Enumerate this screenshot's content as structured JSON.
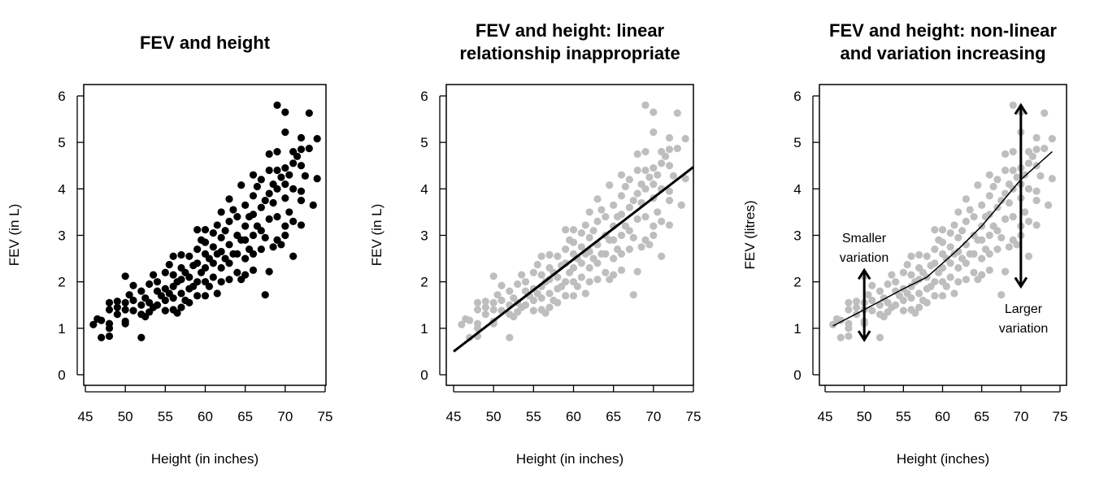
{
  "chart_data": [
    {
      "type": "scatter",
      "title": [
        "FEV and height"
      ],
      "xlabel": "Height (in inches)",
      "ylabel": "FEV (in L)",
      "xlim": [
        45,
        75
      ],
      "ylim": [
        0,
        6
      ],
      "xticks": [
        45,
        50,
        55,
        60,
        65,
        70,
        75
      ],
      "yticks": [
        0,
        1,
        2,
        3,
        4,
        5,
        6
      ],
      "point_color": "#000000",
      "grid": false
    },
    {
      "type": "scatter",
      "title": [
        "FEV and height: linear",
        "relationship inappropriate"
      ],
      "xlabel": "Height (in inches)",
      "ylabel": "FEV (in L)",
      "xlim": [
        45,
        75
      ],
      "ylim": [
        0,
        6
      ],
      "xticks": [
        45,
        50,
        55,
        60,
        65,
        70,
        75
      ],
      "yticks": [
        0,
        1,
        2,
        3,
        4,
        5,
        6
      ],
      "point_color": "#bebebe",
      "grid": false,
      "line": {
        "x": [
          45,
          75
        ],
        "y": [
          0.5,
          4.47
        ]
      }
    },
    {
      "type": "scatter",
      "title": [
        "FEV and height: non-linear",
        "and variation increasing"
      ],
      "xlabel": "Height (inches)",
      "ylabel": "FEV (litres)",
      "xlim": [
        45,
        75
      ],
      "ylim": [
        0,
        6
      ],
      "xticks": [
        45,
        50,
        55,
        60,
        65,
        70,
        75
      ],
      "yticks": [
        0,
        1,
        2,
        3,
        4,
        5,
        6
      ],
      "point_color": "#bebebe",
      "grid": false,
      "curve": {
        "x": [
          46,
          50,
          55,
          58,
          60,
          62,
          65,
          68,
          70,
          72,
          74
        ],
        "y": [
          1.05,
          1.4,
          1.85,
          2.1,
          2.4,
          2.7,
          3.2,
          3.8,
          4.2,
          4.5,
          4.8
        ]
      },
      "annotations": [
        {
          "text": [
            "Smaller",
            "variation"
          ],
          "arrow_x": 50,
          "arrow_y": [
            0.75,
            2.25
          ]
        },
        {
          "text": [
            "Larger",
            "variation"
          ],
          "arrow_x": 70,
          "arrow_y": [
            1.9,
            5.8
          ]
        }
      ]
    }
  ],
  "points": [
    [
      46,
      1.08
    ],
    [
      46.5,
      1.2
    ],
    [
      47,
      0.8
    ],
    [
      47,
      1.17
    ],
    [
      48,
      0.83
    ],
    [
      48,
      1.0
    ],
    [
      48,
      1.1
    ],
    [
      48,
      1.4
    ],
    [
      48,
      1.55
    ],
    [
      49,
      1.3
    ],
    [
      49,
      1.45
    ],
    [
      49,
      1.58
    ],
    [
      50,
      1.1
    ],
    [
      50,
      1.15
    ],
    [
      50,
      1.4
    ],
    [
      50,
      1.55
    ],
    [
      50,
      2.12
    ],
    [
      50.5,
      1.72
    ],
    [
      51,
      1.38
    ],
    [
      51,
      1.6
    ],
    [
      51,
      1.92
    ],
    [
      52,
      0.8
    ],
    [
      52,
      1.3
    ],
    [
      52,
      1.5
    ],
    [
      52,
      1.8
    ],
    [
      52.5,
      1.25
    ],
    [
      52.5,
      1.65
    ],
    [
      53,
      1.35
    ],
    [
      53,
      1.55
    ],
    [
      53,
      1.95
    ],
    [
      53.5,
      1.45
    ],
    [
      53.5,
      2.15
    ],
    [
      54,
      1.5
    ],
    [
      54,
      1.8
    ],
    [
      54,
      2.0
    ],
    [
      54.5,
      1.7
    ],
    [
      55,
      1.38
    ],
    [
      55,
      1.6
    ],
    [
      55,
      1.85
    ],
    [
      55,
      2.2
    ],
    [
      55.5,
      1.75
    ],
    [
      55.5,
      2.37
    ],
    [
      56,
      1.4
    ],
    [
      56,
      1.65
    ],
    [
      56,
      1.9
    ],
    [
      56,
      2.15
    ],
    [
      56,
      2.55
    ],
    [
      56.5,
      1.33
    ],
    [
      56.5,
      2.0
    ],
    [
      57,
      1.45
    ],
    [
      57,
      1.75
    ],
    [
      57,
      2.05
    ],
    [
      57,
      2.3
    ],
    [
      57,
      2.58
    ],
    [
      57.5,
      1.6
    ],
    [
      57.5,
      2.2
    ],
    [
      58,
      1.55
    ],
    [
      58,
      1.85
    ],
    [
      58,
      2.1
    ],
    [
      58,
      2.55
    ],
    [
      58.5,
      1.9
    ],
    [
      58.5,
      2.35
    ],
    [
      59,
      1.7
    ],
    [
      59,
      2.0
    ],
    [
      59,
      2.4
    ],
    [
      59,
      2.7
    ],
    [
      59,
      3.12
    ],
    [
      59.5,
      2.2
    ],
    [
      59.5,
      2.9
    ],
    [
      60,
      1.7
    ],
    [
      60,
      2.0
    ],
    [
      60,
      2.3
    ],
    [
      60,
      2.6
    ],
    [
      60,
      2.85
    ],
    [
      60,
      3.12
    ],
    [
      60.5,
      1.9
    ],
    [
      60.5,
      2.5
    ],
    [
      61,
      2.1
    ],
    [
      61,
      2.4
    ],
    [
      61,
      2.75
    ],
    [
      61,
      3.05
    ],
    [
      61.5,
      1.75
    ],
    [
      61.5,
      2.6
    ],
    [
      61.5,
      3.22
    ],
    [
      62,
      2.0
    ],
    [
      62,
      2.3
    ],
    [
      62,
      2.65
    ],
    [
      62,
      2.95
    ],
    [
      62,
      3.5
    ],
    [
      62.5,
      2.5
    ],
    [
      62.5,
      3.1
    ],
    [
      63,
      2.05
    ],
    [
      63,
      2.4
    ],
    [
      63,
      2.8
    ],
    [
      63,
      3.3
    ],
    [
      63,
      3.78
    ],
    [
      63.5,
      2.6
    ],
    [
      63.5,
      3.55
    ],
    [
      64,
      2.2
    ],
    [
      64,
      2.6
    ],
    [
      64,
      3.0
    ],
    [
      64,
      3.4
    ],
    [
      64.5,
      2.05
    ],
    [
      64.5,
      2.9
    ],
    [
      64.5,
      4.08
    ],
    [
      65,
      2.15
    ],
    [
      65,
      2.5
    ],
    [
      65,
      2.9
    ],
    [
      65,
      3.2
    ],
    [
      65,
      3.65
    ],
    [
      65.5,
      2.7
    ],
    [
      65.5,
      3.4
    ],
    [
      66,
      2.25
    ],
    [
      66,
      2.6
    ],
    [
      66,
      3.0
    ],
    [
      66,
      3.45
    ],
    [
      66,
      3.85
    ],
    [
      66,
      4.3
    ],
    [
      66.5,
      3.2
    ],
    [
      66.5,
      4.05
    ],
    [
      67,
      2.7
    ],
    [
      67,
      3.1
    ],
    [
      67,
      3.6
    ],
    [
      67,
      4.2
    ],
    [
      67.5,
      1.72
    ],
    [
      67.5,
      2.95
    ],
    [
      67.5,
      3.75
    ],
    [
      68,
      2.22
    ],
    [
      68,
      3.35
    ],
    [
      68,
      3.9
    ],
    [
      68,
      4.4
    ],
    [
      68,
      4.75
    ],
    [
      68.5,
      2.75
    ],
    [
      68.5,
      3.7
    ],
    [
      68.5,
      4.1
    ],
    [
      69,
      2.9
    ],
    [
      69,
      3.4
    ],
    [
      69,
      4.0
    ],
    [
      69,
      4.4
    ],
    [
      69,
      4.8
    ],
    [
      69,
      5.8
    ],
    [
      69.5,
      2.8
    ],
    [
      69.5,
      4.25
    ],
    [
      70,
      3.0
    ],
    [
      70,
      3.2
    ],
    [
      70,
      3.8
    ],
    [
      70,
      4.1
    ],
    [
      70,
      4.45
    ],
    [
      70,
      5.22
    ],
    [
      70,
      5.65
    ],
    [
      70.5,
      3.5
    ],
    [
      70.5,
      4.3
    ],
    [
      71,
      2.55
    ],
    [
      71,
      3.3
    ],
    [
      71,
      4.0
    ],
    [
      71,
      4.55
    ],
    [
      71,
      4.8
    ],
    [
      71.5,
      4.7
    ],
    [
      72,
      3.22
    ],
    [
      72,
      3.75
    ],
    [
      72,
      3.95
    ],
    [
      72,
      4.5
    ],
    [
      72,
      4.85
    ],
    [
      72,
      5.1
    ],
    [
      72.5,
      4.28
    ],
    [
      73,
      4.87
    ],
    [
      73,
      5.63
    ],
    [
      73.5,
      3.65
    ],
    [
      74,
      4.22
    ],
    [
      74,
      5.08
    ]
  ]
}
